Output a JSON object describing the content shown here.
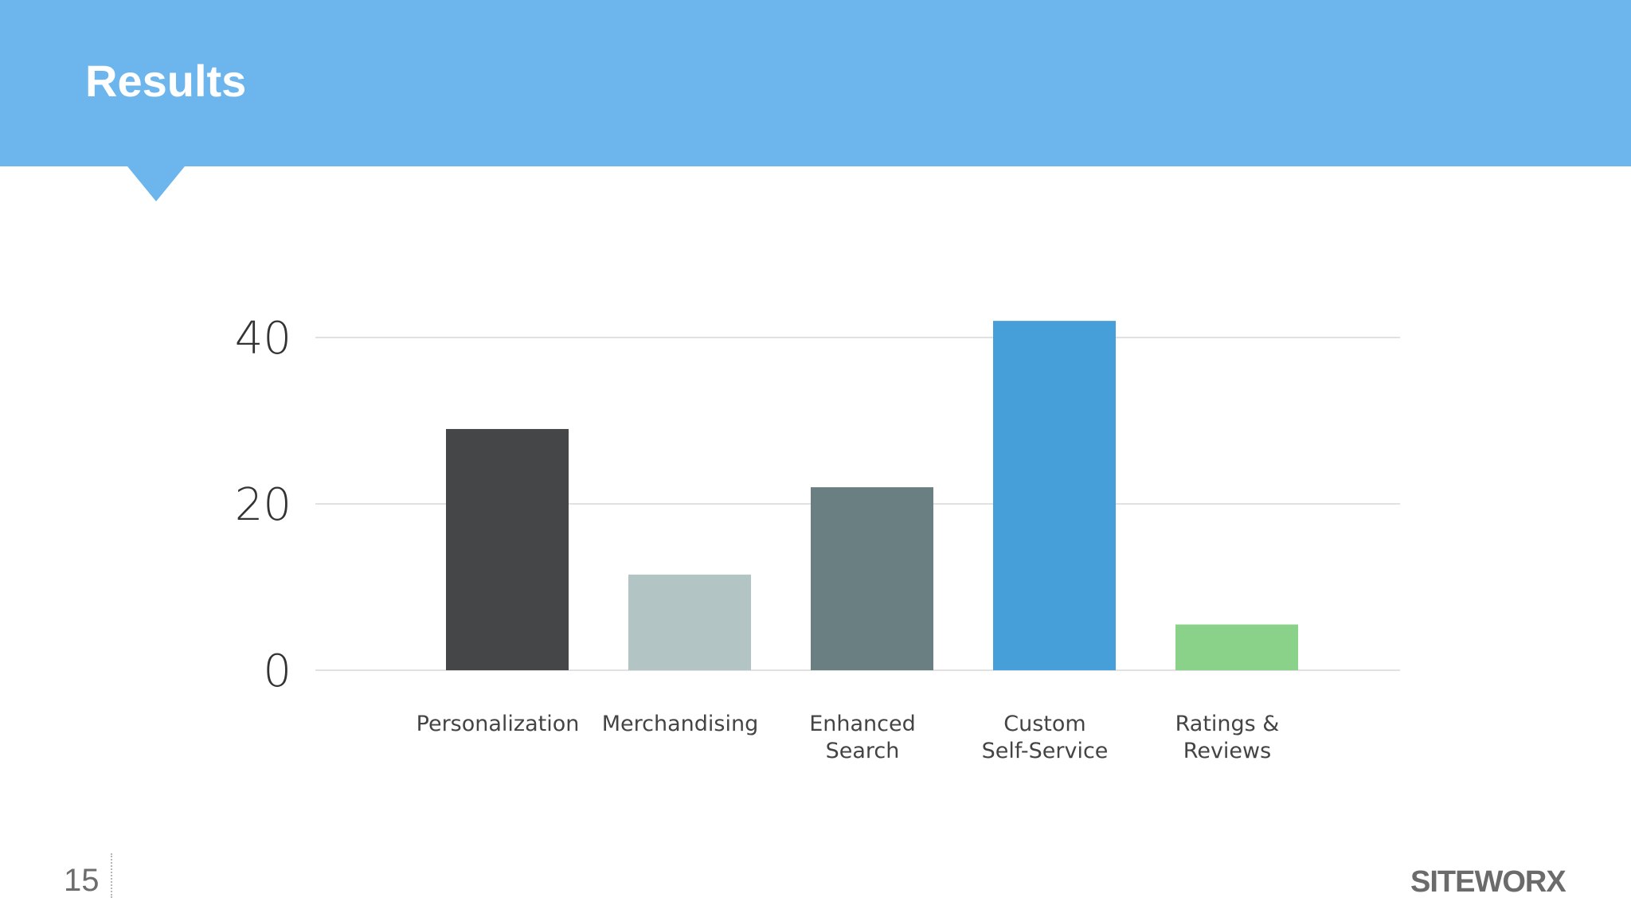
{
  "slide": {
    "title": "Results",
    "page_number": "15",
    "logo_text": "SITEWORX",
    "header_color": "#6cb6ed"
  },
  "chart_data": {
    "type": "bar",
    "categories": [
      [
        "Personalization"
      ],
      [
        "Merchandising"
      ],
      [
        "Enhanced",
        "Search"
      ],
      [
        "Custom",
        "Self-Service"
      ],
      [
        "Ratings &",
        "Reviews"
      ]
    ],
    "values": [
      29,
      11.5,
      22,
      42,
      5.5
    ],
    "colors": [
      "#454647",
      "#b2c4c4",
      "#6a7f82",
      "#469fd8",
      "#8ad18a"
    ],
    "yticks": [
      "0",
      "20",
      "40"
    ],
    "ylim": [
      0,
      40
    ],
    "grid": true,
    "title": "",
    "xlabel": "",
    "ylabel": ""
  }
}
